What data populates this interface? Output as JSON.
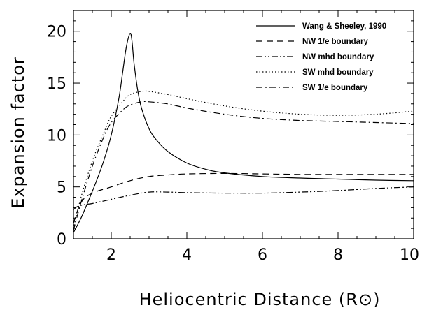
{
  "chart_data": {
    "type": "line",
    "title": "",
    "xlabel": "Heliocentric Distance (R",
    "xlabel_symbol": "⊙",
    "xlabel_close": ")",
    "ylabel": "Expansion factor",
    "xlim": [
      1,
      10
    ],
    "ylim": [
      0,
      22
    ],
    "xticks": [
      2,
      4,
      6,
      8,
      10
    ],
    "yticks": [
      0,
      5,
      10,
      15,
      20
    ],
    "grid": false,
    "legend_position": "top-right",
    "series": [
      {
        "name": "Wang & Sheeley, 1990",
        "dash": "solid",
        "x": [
          1.0,
          1.2,
          1.4,
          1.6,
          1.8,
          2.0,
          2.2,
          2.3,
          2.4,
          2.5,
          2.55,
          2.6,
          2.7,
          2.8,
          3.0,
          3.2,
          3.5,
          4.0,
          4.5,
          5.0,
          6.0,
          7.0,
          8.0,
          9.0,
          10.0
        ],
        "y": [
          0.6,
          2.0,
          3.7,
          5.5,
          7.5,
          10.0,
          13.5,
          16.0,
          18.5,
          19.8,
          19.0,
          17.0,
          14.3,
          12.6,
          10.6,
          9.5,
          8.4,
          7.3,
          6.7,
          6.35,
          6.0,
          5.85,
          5.75,
          5.65,
          5.6
        ]
      },
      {
        "name": "NW 1/e boundary",
        "dash": "dashed",
        "x": [
          1.0,
          1.2,
          1.5,
          2.0,
          2.5,
          3.0,
          3.5,
          4.0,
          5.0,
          6.0,
          7.0,
          8.0,
          9.0,
          10.0
        ],
        "y": [
          1.5,
          3.5,
          4.4,
          5.0,
          5.6,
          6.0,
          6.15,
          6.25,
          6.3,
          6.25,
          6.2,
          6.2,
          6.2,
          6.2
        ]
      },
      {
        "name": "NW mhd boundary",
        "dash": "dash-dot-dot",
        "x": [
          1.0,
          1.1,
          1.3,
          1.5,
          2.0,
          2.5,
          3.0,
          3.5,
          4.0,
          5.0,
          6.0,
          7.0,
          8.0,
          9.0,
          10.0
        ],
        "y": [
          2.8,
          3.1,
          3.3,
          3.4,
          3.8,
          4.2,
          4.5,
          4.5,
          4.45,
          4.4,
          4.4,
          4.5,
          4.65,
          4.85,
          5.0
        ]
      },
      {
        "name": "SW mhd boundary",
        "dash": "dotted",
        "x": [
          1.0,
          1.2,
          1.5,
          1.8,
          2.0,
          2.3,
          2.5,
          2.8,
          3.0,
          3.5,
          4.0,
          5.0,
          6.0,
          7.0,
          8.0,
          9.0,
          10.0
        ],
        "y": [
          1.0,
          4.0,
          7.5,
          10.2,
          11.8,
          13.2,
          13.9,
          14.2,
          14.2,
          13.9,
          13.5,
          12.8,
          12.3,
          12.0,
          11.9,
          12.0,
          12.3
        ]
      },
      {
        "name": "SW 1/e boundary",
        "dash": "dash-dot",
        "x": [
          1.0,
          1.2,
          1.5,
          1.8,
          2.0,
          2.3,
          2.5,
          2.8,
          3.0,
          3.5,
          4.0,
          5.0,
          6.0,
          7.0,
          8.0,
          9.0,
          10.0
        ],
        "y": [
          0.8,
          3.5,
          7.0,
          9.8,
          11.2,
          12.4,
          12.9,
          13.2,
          13.2,
          13.0,
          12.6,
          12.0,
          11.6,
          11.4,
          11.3,
          11.2,
          11.1
        ]
      }
    ]
  }
}
